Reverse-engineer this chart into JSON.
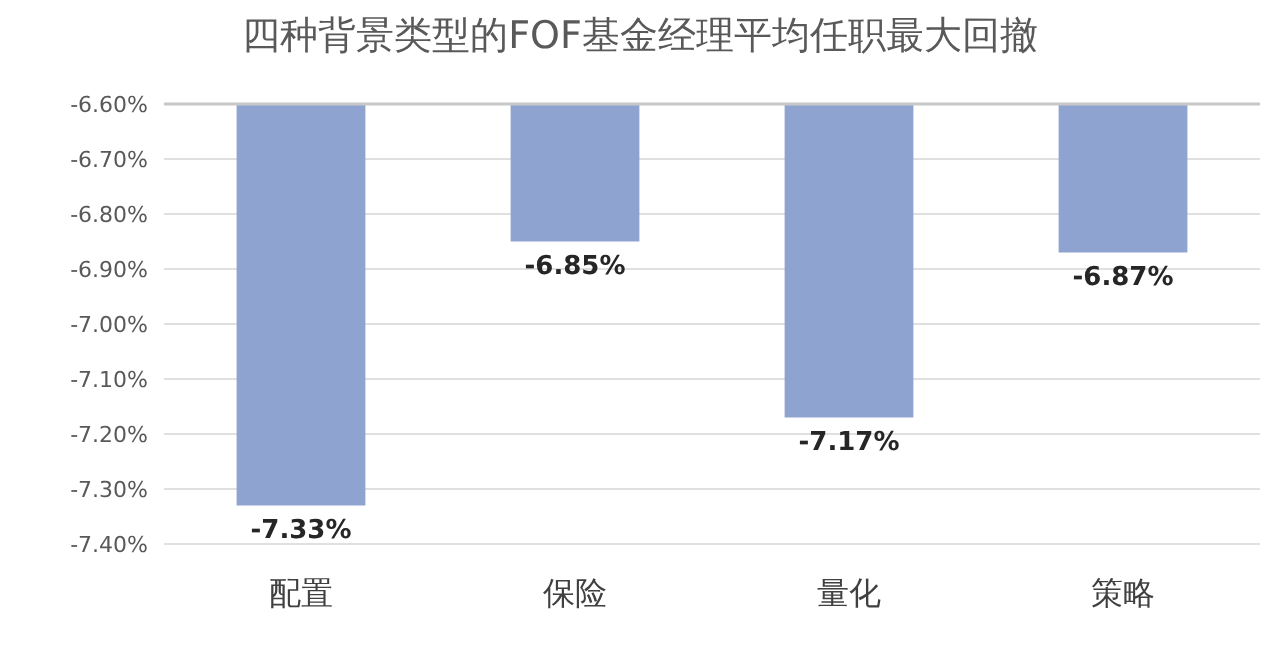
{
  "chart_data": {
    "type": "bar",
    "title": "四种背景类型的FOF基金经理平均任职最大回撤",
    "categories": [
      "配置",
      "保险",
      "量化",
      "策略"
    ],
    "values": [
      -7.33,
      -6.85,
      -7.17,
      -6.87
    ],
    "value_labels": [
      "-7.33%",
      "-6.85%",
      "-7.17%",
      "-6.87%"
    ],
    "color": "#8fa3d1",
    "ylim": [
      -7.4,
      -6.6
    ],
    "yticks": [
      {
        "value": -6.6,
        "label": "-6.60%"
      },
      {
        "value": -6.7,
        "label": "-6.70%"
      },
      {
        "value": -6.8,
        "label": "-6.80%"
      },
      {
        "value": -6.9,
        "label": "-6.90%"
      },
      {
        "value": -7.0,
        "label": "-7.00%"
      },
      {
        "value": -7.1,
        "label": "-7.10%"
      },
      {
        "value": -7.2,
        "label": "-7.20%"
      },
      {
        "value": -7.3,
        "label": "-7.30%"
      },
      {
        "value": -7.4,
        "label": "-7.40%"
      }
    ],
    "grid": "y"
  }
}
